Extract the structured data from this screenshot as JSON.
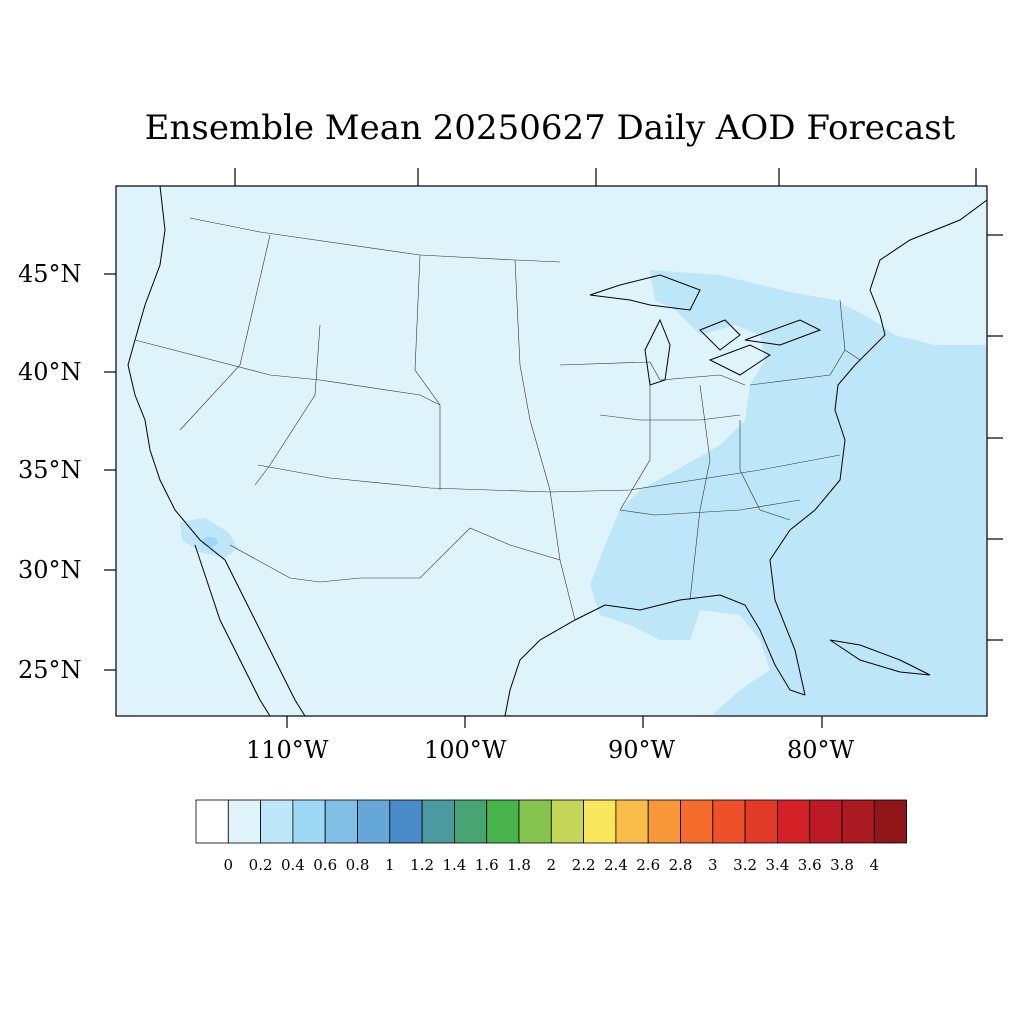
{
  "title": "Ensemble Mean 20250627 Daily AOD Forecast",
  "latitude_labels": [
    "45°N",
    "40°N",
    "35°N",
    "30°N",
    "25°N"
  ],
  "longitude_labels": [
    "110°W",
    "100°W",
    "90°W",
    "80°W"
  ],
  "colorbar": {
    "ticks": [
      "0",
      "0.2",
      "0.4",
      "0.6",
      "0.8",
      "1",
      "1.2",
      "1.4",
      "1.6",
      "1.8",
      "2",
      "2.2",
      "2.4",
      "2.6",
      "2.8",
      "3",
      "3.2",
      "3.4",
      "3.6",
      "3.8",
      "4"
    ],
    "colors": [
      "#ffffff",
      "#dff3fb",
      "#bde6f8",
      "#9dd8f4",
      "#80bfe6",
      "#66a7da",
      "#4a8cc9",
      "#4a9a9f",
      "#46a573",
      "#47b449",
      "#85c44e",
      "#c3d658",
      "#f8e65b",
      "#f7bd48",
      "#f6973a",
      "#f46b2c",
      "#ec5129",
      "#e13a27",
      "#d42127",
      "#bc1a24",
      "#aa1a20",
      "#8f1519"
    ]
  },
  "colors": {
    "background_field": "#dff3fb",
    "elevated_aod_field": "#bde6f8",
    "border_lines": "#000000"
  }
}
